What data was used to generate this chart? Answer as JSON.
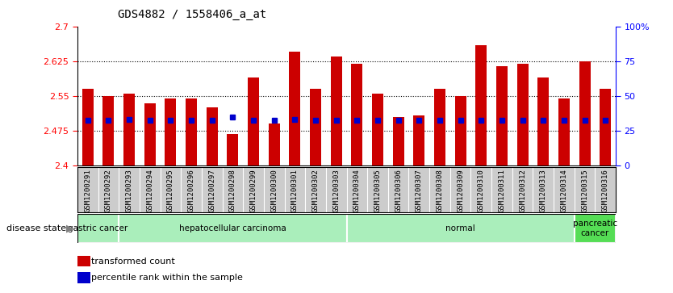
{
  "title": "GDS4882 / 1558406_a_at",
  "samples": [
    "GSM1200291",
    "GSM1200292",
    "GSM1200293",
    "GSM1200294",
    "GSM1200295",
    "GSM1200296",
    "GSM1200297",
    "GSM1200298",
    "GSM1200299",
    "GSM1200300",
    "GSM1200301",
    "GSM1200302",
    "GSM1200303",
    "GSM1200304",
    "GSM1200305",
    "GSM1200306",
    "GSM1200307",
    "GSM1200308",
    "GSM1200309",
    "GSM1200310",
    "GSM1200311",
    "GSM1200312",
    "GSM1200313",
    "GSM1200314",
    "GSM1200315",
    "GSM1200316"
  ],
  "transformed_counts": [
    2.565,
    2.55,
    2.555,
    2.535,
    2.545,
    2.545,
    2.525,
    2.468,
    2.59,
    2.49,
    2.645,
    2.565,
    2.635,
    2.62,
    2.555,
    2.505,
    2.508,
    2.565,
    2.55,
    2.66,
    2.615,
    2.62,
    2.59,
    2.545,
    2.625,
    2.565
  ],
  "percentile_values": [
    2.497,
    2.497,
    2.499,
    2.497,
    2.497,
    2.497,
    2.497,
    2.505,
    2.497,
    2.497,
    2.499,
    2.497,
    2.497,
    2.497,
    2.497,
    2.497,
    2.497,
    2.497,
    2.497,
    2.497,
    2.497,
    2.497,
    2.497,
    2.497,
    2.497,
    2.497
  ],
  "ymin": 2.4,
  "ymax": 2.7,
  "yticks": [
    2.4,
    2.475,
    2.55,
    2.625,
    2.7
  ],
  "ytick_labels": [
    "2.4",
    "2.475",
    "2.55",
    "2.625",
    "2.7"
  ],
  "right_yticks": [
    0,
    25,
    50,
    75,
    100
  ],
  "right_ytick_labels": [
    "0",
    "25",
    "50",
    "75",
    "100%"
  ],
  "bar_color": "#cc0000",
  "blue_color": "#0000cc",
  "disease_groups": [
    {
      "label": "gastric cancer",
      "start": 0,
      "end": 2
    },
    {
      "label": "hepatocellular carcinoma",
      "start": 2,
      "end": 13
    },
    {
      "label": "normal",
      "start": 13,
      "end": 24
    },
    {
      "label": "pancreatic\ncancer",
      "start": 24,
      "end": 26
    }
  ],
  "legend_items": [
    {
      "color": "#cc0000",
      "label": "transformed count"
    },
    {
      "color": "#0000cc",
      "label": "percentile rank within the sample"
    }
  ]
}
